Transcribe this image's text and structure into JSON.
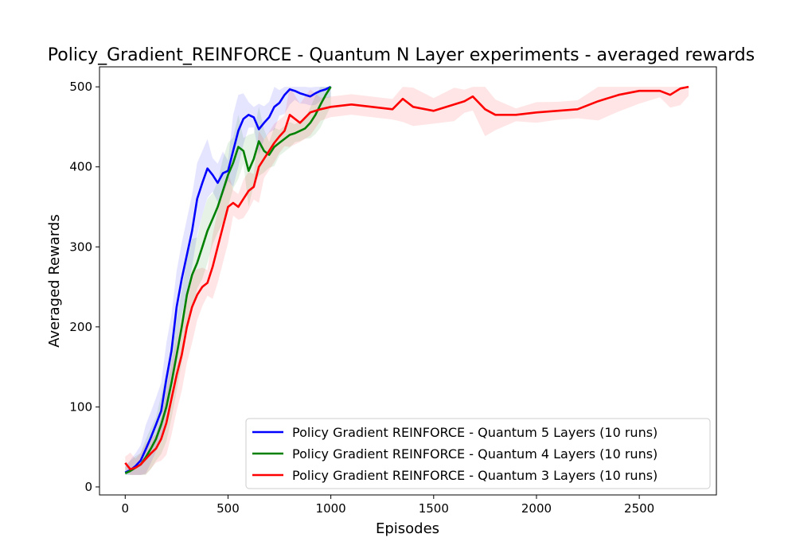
{
  "chart_data": {
    "type": "line",
    "title": "Policy_Gradient_REINFORCE - Quantum N Layer experiments - averaged rewards",
    "xlabel": "Episodes",
    "ylabel": "Averaged Rewards",
    "xlim": [
      -125,
      2875
    ],
    "ylim": [
      -10,
      525
    ],
    "xticks": [
      0,
      500,
      1000,
      1500,
      2000,
      2500
    ],
    "yticks": [
      0,
      100,
      200,
      300,
      400,
      500
    ],
    "grid": false,
    "legend_position": "lower-right",
    "series": [
      {
        "name": "Policy Gradient REINFORCE - Quantum 5 Layers (10 runs)",
        "color": "#0000ff",
        "x": [
          0,
          25,
          50,
          75,
          100,
          125,
          150,
          175,
          200,
          225,
          250,
          275,
          300,
          325,
          350,
          375,
          400,
          425,
          450,
          475,
          500,
          525,
          550,
          575,
          600,
          625,
          650,
          675,
          700,
          725,
          750,
          775,
          800,
          825,
          850,
          875,
          900,
          925,
          950,
          975,
          1000
        ],
        "y": [
          18,
          21,
          26,
          33,
          47,
          62,
          78,
          95,
          135,
          170,
          225,
          260,
          290,
          320,
          360,
          380,
          398,
          390,
          380,
          392,
          395,
          420,
          445,
          460,
          465,
          462,
          447,
          455,
          462,
          475,
          480,
          490,
          497,
          495,
          492,
          490,
          488,
          492,
          495,
          497,
          500
        ]
      },
      {
        "name": "Policy Gradient REINFORCE - Quantum 4 Layers (10 runs)",
        "color": "#008000",
        "x": [
          0,
          25,
          50,
          75,
          100,
          125,
          150,
          175,
          200,
          225,
          250,
          275,
          300,
          325,
          350,
          375,
          400,
          425,
          450,
          475,
          500,
          525,
          550,
          575,
          600,
          625,
          650,
          675,
          700,
          725,
          750,
          775,
          800,
          825,
          850,
          875,
          900,
          925,
          950,
          975,
          1000
        ],
        "y": [
          17,
          20,
          24,
          28,
          37,
          48,
          60,
          78,
          100,
          130,
          165,
          200,
          240,
          265,
          280,
          300,
          320,
          335,
          350,
          370,
          390,
          405,
          425,
          420,
          395,
          410,
          432,
          420,
          415,
          425,
          430,
          435,
          440,
          442,
          445,
          448,
          455,
          465,
          478,
          490,
          500
        ]
      },
      {
        "name": "Policy Gradient REINFORCE - Quantum 3 Layers (10 runs)",
        "color": "#ff0000",
        "x": [
          0,
          25,
          50,
          75,
          100,
          125,
          150,
          175,
          200,
          225,
          250,
          275,
          300,
          325,
          350,
          375,
          400,
          425,
          450,
          475,
          500,
          525,
          550,
          575,
          600,
          625,
          650,
          675,
          700,
          725,
          750,
          775,
          800,
          850,
          900,
          950,
          1000,
          1100,
          1200,
          1300,
          1350,
          1400,
          1500,
          1600,
          1650,
          1690,
          1750,
          1800,
          1900,
          2000,
          2100,
          2200,
          2300,
          2400,
          2500,
          2600,
          2650,
          2700,
          2740
        ],
        "y": [
          30,
          22,
          24,
          28,
          35,
          42,
          48,
          60,
          80,
          110,
          140,
          165,
          200,
          225,
          240,
          250,
          255,
          275,
          300,
          325,
          350,
          355,
          350,
          360,
          370,
          375,
          400,
          410,
          420,
          430,
          438,
          445,
          465,
          455,
          468,
          472,
          475,
          478,
          475,
          472,
          485,
          475,
          470,
          478,
          482,
          488,
          472,
          465,
          465,
          468,
          470,
          472,
          482,
          490,
          495,
          495,
          490,
          498,
          500
        ]
      }
    ]
  }
}
